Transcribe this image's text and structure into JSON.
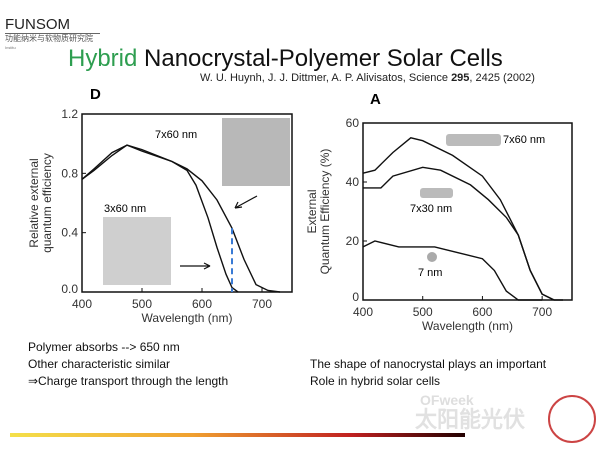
{
  "header": {
    "logo": "FUNSOM",
    "logo_sub": "功能纳米与软物质研究院",
    "logo_tiny": "Institu",
    "title_green": "Hybrid",
    "title_rest": " Nanocrystal-Polyemer Solar Cells",
    "citation_pre": "W. U. Huynh, J. J. Dittmer, A. P. Alivisatos, Science ",
    "citation_vol": "295",
    "citation_post": ", 2425 (2002)"
  },
  "chart_data": [
    {
      "type": "line",
      "panel": "D",
      "xlabel": "Wavelength (nm)",
      "ylabel": [
        "Relative external",
        "quantum efficiency"
      ],
      "xlim": [
        400,
        750
      ],
      "ylim": [
        0,
        1.2
      ],
      "xticks": [
        "400",
        "500",
        "600",
        "700"
      ],
      "yticks": [
        "0.0",
        "0.4",
        "0.8",
        "1.2"
      ],
      "annotations": [
        "7x60 nm",
        "3x60 nm"
      ],
      "marker_line_x": 650,
      "series": [
        {
          "name": "7x60 nm",
          "x": [
            400,
            420,
            450,
            475,
            500,
            550,
            575,
            600,
            625,
            650,
            670,
            690,
            710,
            730
          ],
          "y": [
            0.76,
            0.82,
            0.92,
            0.99,
            0.96,
            0.88,
            0.83,
            0.75,
            0.62,
            0.43,
            0.22,
            0.05,
            0.01,
            0
          ]
        },
        {
          "name": "3x60 nm",
          "x": [
            400,
            420,
            450,
            475,
            500,
            550,
            575,
            590,
            610,
            625,
            640,
            650,
            660
          ],
          "y": [
            0.76,
            0.83,
            0.94,
            0.99,
            0.95,
            0.88,
            0.82,
            0.72,
            0.5,
            0.3,
            0.12,
            0.03,
            0
          ]
        }
      ]
    },
    {
      "type": "line",
      "panel": "A",
      "xlabel": "Wavelength (nm)",
      "ylabel": [
        "External",
        "Quantum Efficiency (%)"
      ],
      "xlim": [
        400,
        750
      ],
      "ylim": [
        0,
        60
      ],
      "xticks": [
        "400",
        "500",
        "600",
        "700"
      ],
      "yticks": [
        "0",
        "20",
        "40",
        "60"
      ],
      "series": [
        {
          "name": "7x60 nm",
          "x": [
            400,
            420,
            450,
            480,
            500,
            550,
            600,
            630,
            660,
            680,
            700,
            720,
            735
          ],
          "y": [
            43,
            44,
            50,
            55,
            54,
            49,
            42,
            34,
            22,
            10,
            2,
            0,
            0
          ]
        },
        {
          "name": "7x30 nm",
          "x": [
            400,
            430,
            450,
            500,
            530,
            580,
            610,
            640,
            660,
            680,
            700,
            720
          ],
          "y": [
            38,
            38,
            42,
            45,
            44,
            39,
            34,
            28,
            22,
            10,
            2,
            0
          ]
        },
        {
          "name": "7 nm",
          "x": [
            400,
            420,
            460,
            520,
            560,
            600,
            620,
            640,
            660,
            700
          ],
          "y": [
            18,
            20,
            18,
            18,
            16,
            14,
            10,
            3,
            0,
            0
          ]
        }
      ]
    }
  ],
  "notes_left": [
    "Polymer absorbs --> 650 nm",
    "Other characteristic similar",
    "⇒Charge transport through the length"
  ],
  "notes_right": [
    "The shape of nanocrystal plays an important",
    "Role in hybrid solar cells"
  ],
  "watermark": {
    "line1": "OFweek",
    "line2": "太阳能光伏"
  }
}
